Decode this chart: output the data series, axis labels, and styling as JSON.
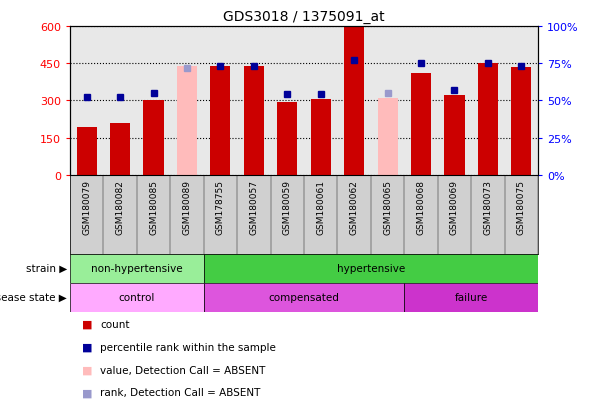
{
  "title": "GDS3018 / 1375091_at",
  "samples": [
    "GSM180079",
    "GSM180082",
    "GSM180085",
    "GSM180089",
    "GSM178755",
    "GSM180057",
    "GSM180059",
    "GSM180061",
    "GSM180062",
    "GSM180065",
    "GSM180068",
    "GSM180069",
    "GSM180073",
    "GSM180075"
  ],
  "counts": [
    195,
    210,
    300,
    440,
    440,
    440,
    295,
    305,
    595,
    310,
    410,
    320,
    450,
    435
  ],
  "percentile_ranks": [
    52,
    52,
    55,
    72,
    73,
    73,
    54,
    54,
    77,
    55,
    75,
    57,
    75,
    73
  ],
  "absent_mask": [
    false,
    false,
    false,
    true,
    false,
    false,
    false,
    false,
    false,
    true,
    false,
    false,
    false,
    false
  ],
  "ylim_left": [
    0,
    600
  ],
  "ylim_right": [
    0,
    100
  ],
  "yticks_left": [
    0,
    150,
    300,
    450,
    600
  ],
  "ytick_labels_left": [
    "0",
    "150",
    "300",
    "450",
    "600"
  ],
  "yticks_right": [
    0,
    25,
    50,
    75,
    100
  ],
  "ytick_labels_right": [
    "0%",
    "25%",
    "50%",
    "75%",
    "100%"
  ],
  "bar_color_present": "#cc0000",
  "bar_color_absent": "#ffbbbb",
  "dot_color_present": "#000099",
  "dot_color_absent": "#9999cc",
  "plot_bg_color": "#e8e8e8",
  "tick_bg_color": "#d0d0d0",
  "strain_groups": [
    {
      "label": "non-hypertensive",
      "start": 0,
      "end": 3,
      "color": "#99ee99"
    },
    {
      "label": "hypertensive",
      "start": 4,
      "end": 13,
      "color": "#44cc44"
    }
  ],
  "disease_groups": [
    {
      "label": "control",
      "start": 0,
      "end": 3,
      "color": "#ffaaff"
    },
    {
      "label": "compensated",
      "start": 4,
      "end": 9,
      "color": "#dd55dd"
    },
    {
      "label": "failure",
      "start": 10,
      "end": 13,
      "color": "#cc33cc"
    }
  ],
  "legend_items": [
    {
      "label": "count",
      "color": "#cc0000"
    },
    {
      "label": "percentile rank within the sample",
      "color": "#000099"
    },
    {
      "label": "value, Detection Call = ABSENT",
      "color": "#ffbbbb"
    },
    {
      "label": "rank, Detection Call = ABSENT",
      "color": "#9999cc"
    }
  ],
  "strain_row_label": "strain",
  "disease_row_label": "disease state"
}
